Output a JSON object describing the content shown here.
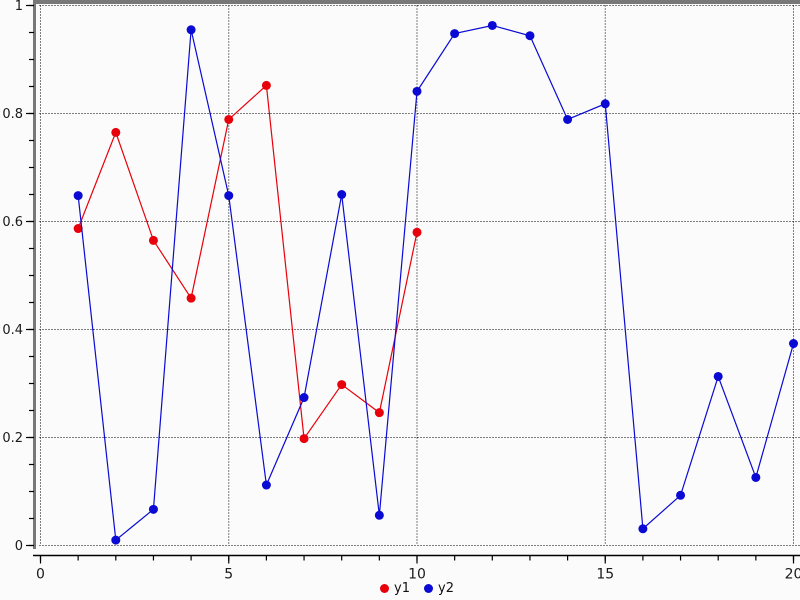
{
  "chart_data": {
    "type": "line",
    "title": "",
    "xlabel": "",
    "ylabel": "",
    "xlim": [
      0,
      20
    ],
    "ylim": [
      0,
      1
    ],
    "grid": true,
    "legend_position": "bottom-center",
    "x_ticks": [
      {
        "v": 0,
        "label": "0"
      },
      {
        "v": 5,
        "label": "5"
      },
      {
        "v": 10,
        "label": "10"
      },
      {
        "v": 15,
        "label": "15"
      },
      {
        "v": 20,
        "label": "20"
      }
    ],
    "y_ticks": [
      {
        "v": 0,
        "label": "0"
      },
      {
        "v": 0.2,
        "label": "0.2"
      },
      {
        "v": 0.4,
        "label": "0.4"
      },
      {
        "v": 0.6,
        "label": "0.6"
      },
      {
        "v": 0.8,
        "label": "0.8"
      },
      {
        "v": 1,
        "label": "1"
      }
    ],
    "x_minor_step": 1,
    "y_minor_step": 0.05,
    "colors": {
      "grid": "#000000",
      "axis": "#000000",
      "frame": "#787878",
      "tick_label": "#1a1a1a",
      "background": "#fbfbfb"
    },
    "series": [
      {
        "name": "y1",
        "color": "#e8000b",
        "x": [
          1,
          2,
          3,
          4,
          5,
          6,
          7,
          8,
          9,
          10
        ],
        "y": [
          0.587,
          0.765,
          0.565,
          0.458,
          0.789,
          0.852,
          0.198,
          0.298,
          0.246,
          0.58
        ]
      },
      {
        "name": "y2",
        "color": "#0a0ad4",
        "x": [
          1,
          2,
          3,
          4,
          5,
          6,
          7,
          8,
          9,
          10,
          11,
          12,
          13,
          14,
          15,
          16,
          17,
          18,
          19,
          20
        ],
        "y": [
          0.648,
          0.01,
          0.067,
          0.955,
          0.648,
          0.112,
          0.274,
          0.65,
          0.056,
          0.841,
          0.948,
          0.963,
          0.944,
          0.789,
          0.818,
          0.031,
          0.093,
          0.313,
          0.126,
          0.374
        ]
      }
    ]
  }
}
